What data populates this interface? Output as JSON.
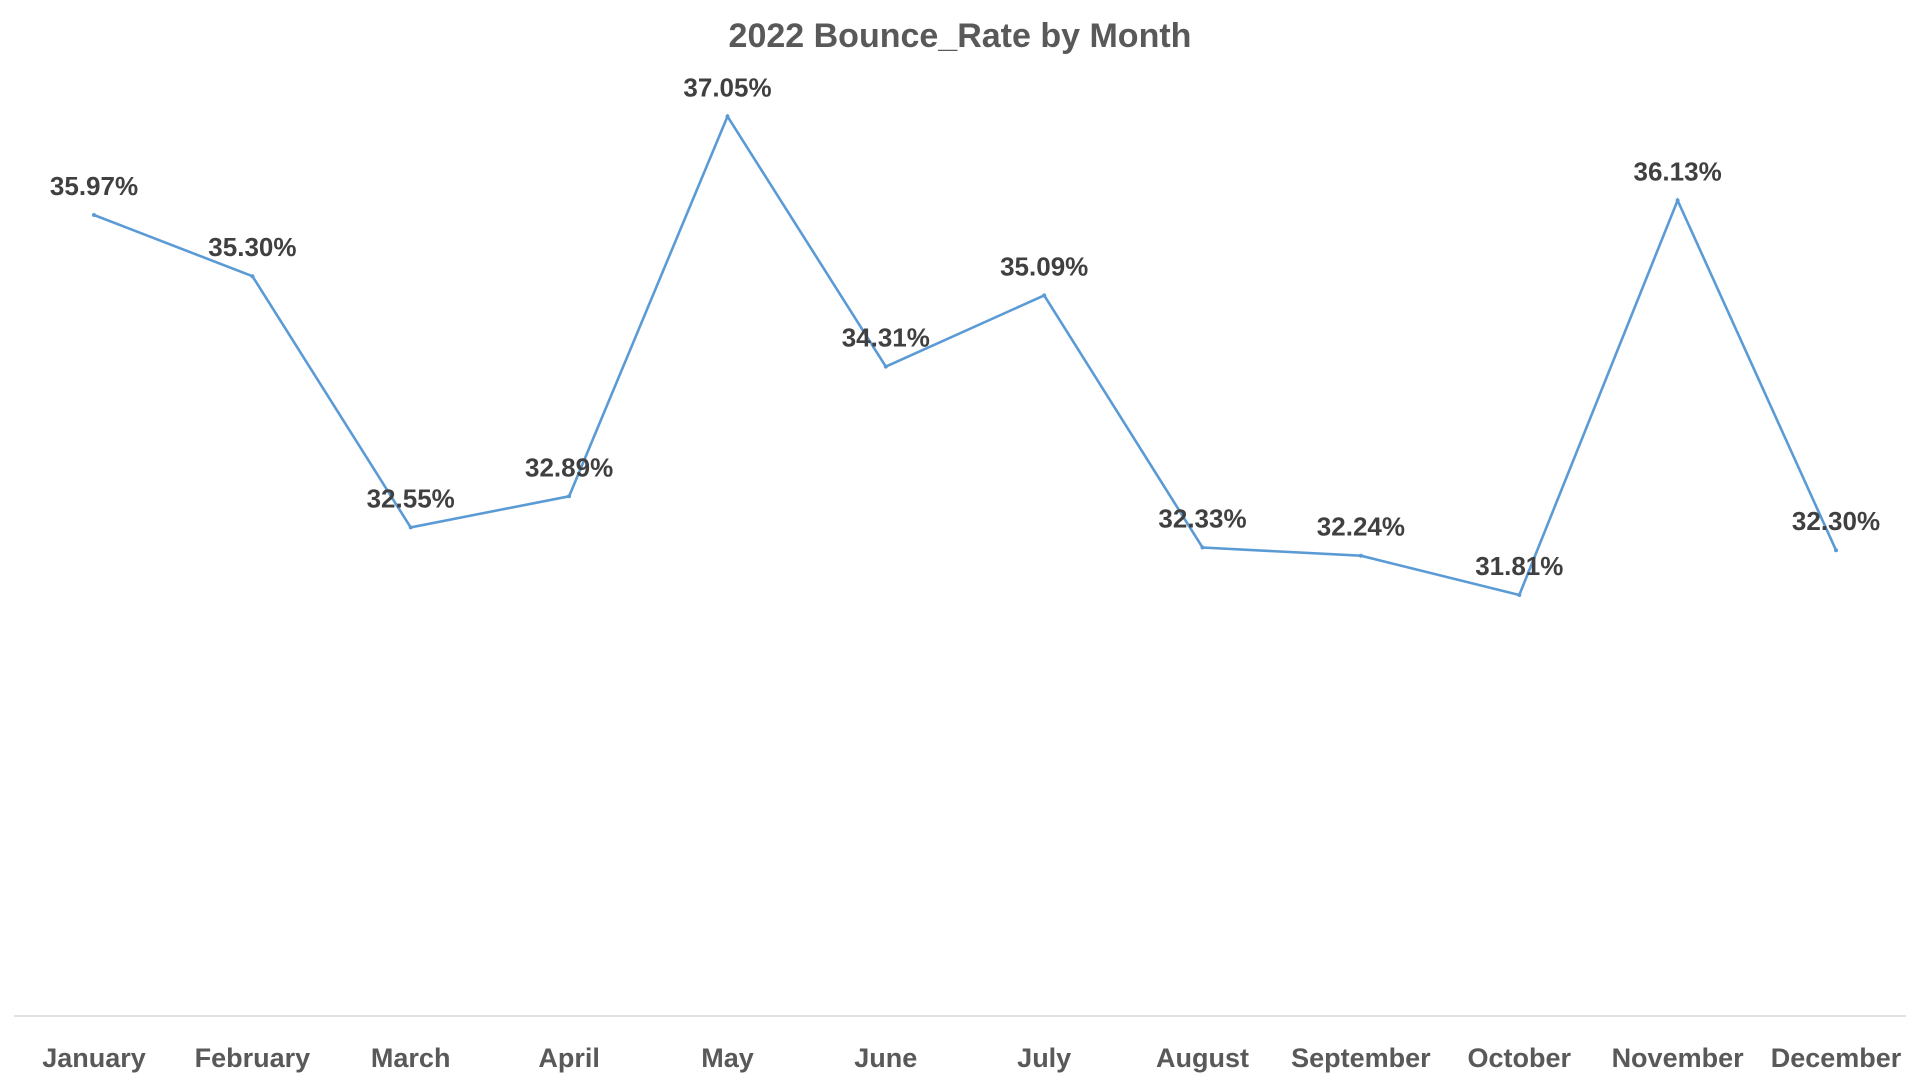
{
  "chart_data": {
    "type": "line",
    "title": "2022 Bounce_Rate by Month",
    "xlabel": "",
    "ylabel": "",
    "categories": [
      "January",
      "February",
      "March",
      "April",
      "May",
      "June",
      "July",
      "August",
      "September",
      "October",
      "November",
      "December"
    ],
    "series": [
      {
        "values": [
          35.97,
          35.3,
          32.55,
          32.89,
          37.05,
          34.31,
          35.09,
          32.33,
          32.24,
          31.81,
          36.13,
          32.3
        ],
        "labels": [
          "35.97%",
          "35.30%",
          "32.55%",
          "32.89%",
          "37.05%",
          "34.31%",
          "35.09%",
          "32.33%",
          "32.24%",
          "31.81%",
          "36.13%",
          "32.30%"
        ],
        "color": "#5b9bd5"
      }
    ],
    "ylim": [
      27.2,
      37.7
    ],
    "grid": false,
    "legend": "none",
    "value_axis_shown": false
  }
}
